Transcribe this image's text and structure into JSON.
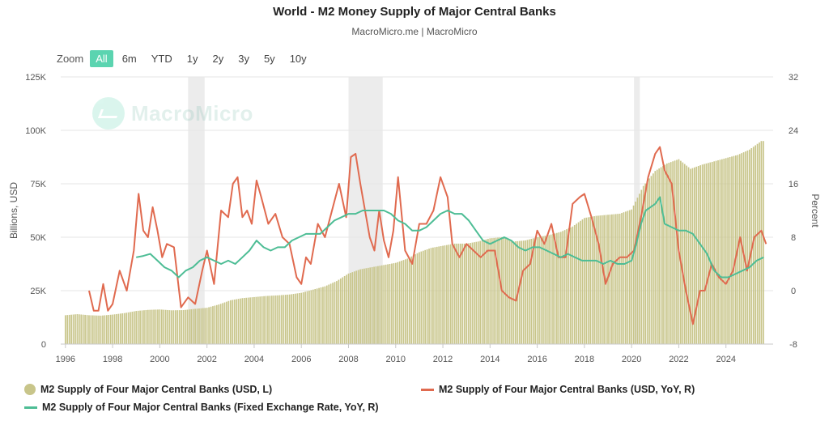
{
  "title": "World - M2 Money Supply of Major Central Banks",
  "subtitle": "MacroMicro.me | MacroMicro",
  "watermark": "MacroMicro",
  "zoom": {
    "label": "Zoom",
    "options": [
      "All",
      "6m",
      "YTD",
      "1y",
      "2y",
      "3y",
      "5y",
      "10y"
    ],
    "active": "All"
  },
  "chart_data": {
    "type": "bar",
    "xlabel": "",
    "ylabel_left": "Billions, USD",
    "ylabel_right": "Percent",
    "x_ticks": [
      "1996",
      "1998",
      "2000",
      "2002",
      "2004",
      "2006",
      "2008",
      "2010",
      "2012",
      "2014",
      "2016",
      "2018",
      "2020",
      "2022",
      "2024"
    ],
    "y_left_ticks": [
      "0",
      "25K",
      "50K",
      "75K",
      "100K",
      "125K"
    ],
    "y_left_range": [
      0,
      125000
    ],
    "y_right_ticks": [
      "-8",
      "0",
      "8",
      "16",
      "24",
      "32"
    ],
    "y_right_range": [
      -8,
      32
    ],
    "x_range": [
      1995.8,
      2026.0
    ],
    "recession_bands": [
      [
        2001.2,
        2001.9
      ],
      [
        2008.0,
        2009.45
      ],
      [
        2020.1,
        2020.35
      ]
    ],
    "colors": {
      "bars": "#c8c58a",
      "usd_yoy": "#e06a4f",
      "fixed_yoy": "#4dbd95",
      "band": "#ececec",
      "grid": "#e6e6e6"
    },
    "series": [
      {
        "name": "M2 Supply of Four Major Central Banks (USD, L)",
        "kind": "bar",
        "axis": "left",
        "x": [
          1996.0,
          1996.5,
          1997.0,
          1997.5,
          1998.0,
          1998.5,
          1999.0,
          1999.5,
          2000.0,
          2000.5,
          2001.0,
          2001.5,
          2002.0,
          2002.5,
          2003.0,
          2003.5,
          2004.0,
          2004.5,
          2005.0,
          2005.5,
          2006.0,
          2006.5,
          2007.0,
          2007.5,
          2008.0,
          2008.5,
          2009.0,
          2009.5,
          2010.0,
          2010.5,
          2011.0,
          2011.5,
          2012.0,
          2012.5,
          2013.0,
          2013.5,
          2014.0,
          2014.5,
          2015.0,
          2015.5,
          2016.0,
          2016.5,
          2017.0,
          2017.5,
          2018.0,
          2018.5,
          2019.0,
          2019.5,
          2020.0,
          2020.5,
          2021.0,
          2021.5,
          2022.0,
          2022.5,
          2023.0,
          2023.5,
          2024.0,
          2024.5,
          2025.0,
          2025.5
        ],
        "values": [
          13500,
          14000,
          13500,
          13300,
          13800,
          14500,
          15500,
          16000,
          16200,
          15800,
          15900,
          16500,
          17000,
          18500,
          20500,
          21500,
          22000,
          22500,
          22800,
          23200,
          24000,
          25500,
          27000,
          29500,
          33000,
          35000,
          36000,
          37000,
          38000,
          40000,
          43000,
          45000,
          46000,
          47000,
          47000,
          48000,
          49500,
          50000,
          48000,
          48500,
          50000,
          51000,
          52500,
          55000,
          59000,
          60000,
          60500,
          61000,
          63000,
          74000,
          81000,
          84500,
          86500,
          82000,
          84000,
          85500,
          87000,
          88500,
          91000,
          95000
        ]
      },
      {
        "name": "M2 Supply of Four Major Central Banks (USD, YoY, R)",
        "kind": "line",
        "axis": "right",
        "x": [
          1997.0,
          1997.2,
          1997.4,
          1997.6,
          1997.8,
          1998.0,
          1998.3,
          1998.6,
          1998.9,
          1999.1,
          1999.3,
          1999.5,
          1999.7,
          1999.9,
          2000.1,
          2000.3,
          2000.6,
          2000.9,
          2001.2,
          2001.5,
          2001.8,
          2002.0,
          2002.3,
          2002.6,
          2002.9,
          2003.1,
          2003.3,
          2003.5,
          2003.7,
          2003.9,
          2004.1,
          2004.3,
          2004.6,
          2004.9,
          2005.2,
          2005.5,
          2005.8,
          2006.0,
          2006.2,
          2006.4,
          2006.7,
          2007.0,
          2007.3,
          2007.6,
          2007.9,
          2008.1,
          2008.3,
          2008.5,
          2008.7,
          2008.9,
          2009.1,
          2009.3,
          2009.5,
          2009.7,
          2009.9,
          2010.1,
          2010.4,
          2010.7,
          2011.0,
          2011.3,
          2011.6,
          2011.9,
          2012.2,
          2012.4,
          2012.7,
          2013.0,
          2013.3,
          2013.6,
          2013.9,
          2014.2,
          2014.5,
          2014.8,
          2015.1,
          2015.4,
          2015.7,
          2016.0,
          2016.3,
          2016.6,
          2016.9,
          2017.2,
          2017.5,
          2017.8,
          2018.0,
          2018.3,
          2018.6,
          2018.9,
          2019.2,
          2019.5,
          2019.8,
          2020.1,
          2020.4,
          2020.7,
          2021.0,
          2021.2,
          2021.4,
          2021.7,
          2022.0,
          2022.3,
          2022.6,
          2022.9,
          2023.1,
          2023.4,
          2023.7,
          2024.0,
          2024.3,
          2024.6,
          2024.9,
          2025.2,
          2025.5,
          2025.7
        ],
        "values": [
          0.0,
          -3.0,
          -3.0,
          1.0,
          -3.0,
          -2.0,
          3.0,
          0.0,
          6.0,
          14.5,
          9.0,
          8.0,
          12.5,
          9.0,
          5.0,
          7.0,
          6.5,
          -2.5,
          -1.0,
          -2.0,
          3.0,
          6.0,
          1.0,
          12.0,
          11.0,
          16.0,
          17.0,
          11.0,
          12.0,
          10.0,
          16.5,
          14.0,
          10.0,
          11.5,
          8.0,
          7.0,
          2.0,
          1.0,
          5.0,
          4.0,
          10.0,
          8.0,
          12.0,
          16.0,
          11.0,
          20.0,
          20.5,
          16.0,
          12.0,
          8.0,
          6.0,
          12.0,
          7.5,
          5.0,
          9.0,
          17.0,
          6.0,
          4.0,
          10.0,
          10.0,
          12.0,
          17.0,
          14.0,
          7.0,
          5.0,
          7.0,
          6.0,
          5.0,
          6.0,
          6.0,
          0.0,
          -1.0,
          -1.5,
          3.0,
          4.0,
          9.0,
          7.0,
          10.0,
          5.0,
          5.0,
          13.0,
          14.0,
          14.5,
          11.0,
          7.0,
          1.0,
          4.0,
          5.0,
          5.0,
          6.0,
          11.0,
          17.0,
          20.5,
          21.5,
          18.0,
          16.0,
          6.0,
          0.0,
          -5.0,
          0.0,
          0.0,
          4.0,
          2.0,
          1.0,
          3.0,
          8.0,
          3.0,
          8.0,
          9.0,
          7.0
        ]
      },
      {
        "name": "M2 Supply of Four Major Central Banks (Fixed Exchange Rate, YoY, R)",
        "kind": "line",
        "axis": "right",
        "x": [
          1999.0,
          1999.3,
          1999.6,
          1999.9,
          2000.2,
          2000.5,
          2000.8,
          2001.1,
          2001.4,
          2001.7,
          2002.0,
          2002.3,
          2002.6,
          2002.9,
          2003.2,
          2003.5,
          2003.8,
          2004.1,
          2004.4,
          2004.7,
          2005.0,
          2005.3,
          2005.6,
          2005.9,
          2006.2,
          2006.5,
          2006.8,
          2007.1,
          2007.4,
          2007.7,
          2008.0,
          2008.3,
          2008.6,
          2008.9,
          2009.2,
          2009.5,
          2009.8,
          2010.1,
          2010.4,
          2010.7,
          2011.0,
          2011.3,
          2011.6,
          2011.9,
          2012.2,
          2012.5,
          2012.8,
          2013.1,
          2013.4,
          2013.7,
          2014.0,
          2014.3,
          2014.6,
          2014.9,
          2015.2,
          2015.5,
          2015.8,
          2016.1,
          2016.4,
          2016.7,
          2017.0,
          2017.3,
          2017.6,
          2017.9,
          2018.2,
          2018.5,
          2018.8,
          2019.1,
          2019.4,
          2019.7,
          2020.0,
          2020.2,
          2020.4,
          2020.6,
          2020.8,
          2021.0,
          2021.2,
          2021.4,
          2021.7,
          2022.0,
          2022.3,
          2022.6,
          2022.9,
          2023.2,
          2023.5,
          2023.8,
          2024.1,
          2024.4,
          2024.7,
          2025.0,
          2025.3,
          2025.6
        ],
        "values": [
          5.0,
          5.2,
          5.5,
          4.5,
          3.5,
          3.0,
          2.0,
          3.0,
          3.5,
          4.5,
          5.0,
          4.5,
          4.0,
          4.5,
          4.0,
          5.0,
          6.0,
          7.5,
          6.5,
          6.0,
          6.5,
          6.5,
          7.5,
          8.0,
          8.5,
          8.5,
          8.5,
          9.5,
          10.5,
          11.0,
          11.5,
          11.5,
          12.0,
          12.0,
          12.0,
          12.0,
          11.5,
          10.5,
          10.0,
          9.0,
          9.0,
          9.5,
          10.5,
          11.5,
          12.0,
          11.5,
          11.5,
          10.5,
          9.0,
          7.5,
          7.0,
          7.5,
          8.0,
          7.5,
          6.5,
          6.0,
          6.5,
          6.5,
          6.0,
          5.5,
          5.0,
          5.5,
          5.0,
          4.5,
          4.5,
          4.5,
          4.0,
          4.5,
          4.0,
          4.0,
          4.5,
          7.0,
          10.0,
          12.0,
          12.5,
          13.0,
          14.0,
          10.0,
          9.5,
          9.0,
          9.0,
          8.5,
          7.0,
          5.5,
          3.0,
          2.0,
          2.0,
          2.5,
          3.0,
          3.5,
          4.5,
          5.0
        ]
      }
    ]
  }
}
